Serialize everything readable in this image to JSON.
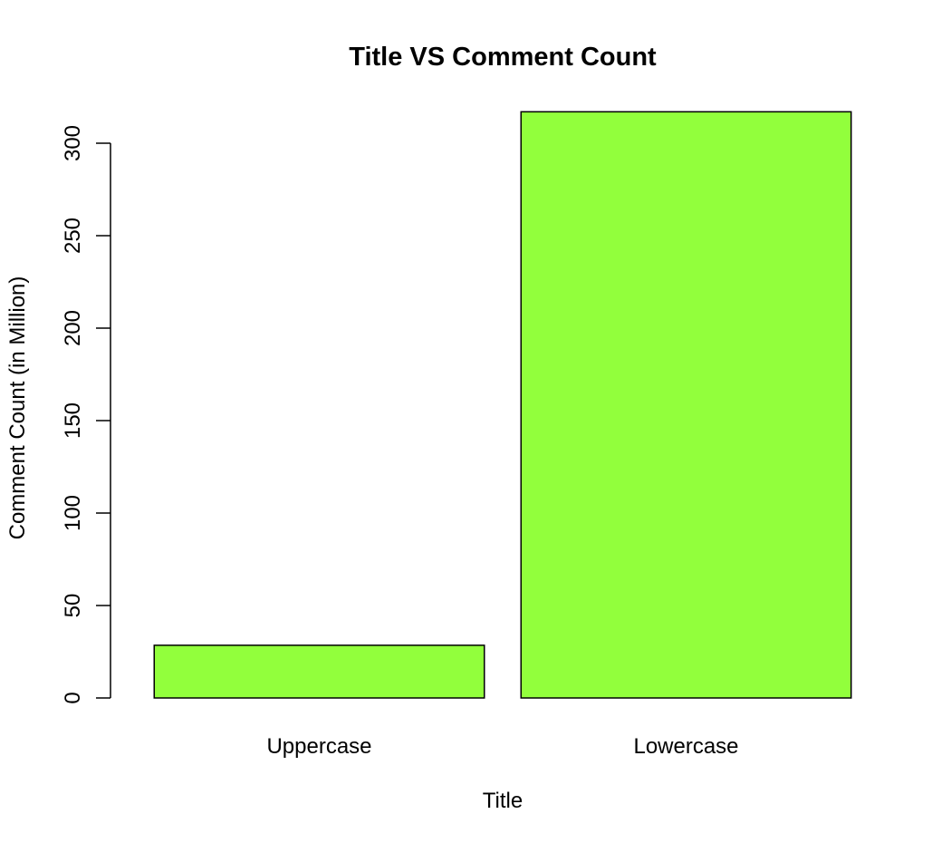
{
  "chart_data": {
    "type": "bar",
    "title": "Title VS Comment Count",
    "xlabel": "Title",
    "ylabel": "Comment Count (in Million)",
    "categories": [
      "Uppercase",
      "Lowercase"
    ],
    "values": [
      28.5,
      317
    ],
    "ylim": [
      0,
      300
    ],
    "yticks": [
      0,
      50,
      100,
      150,
      200,
      250,
      300
    ],
    "grid": false,
    "bar_color": "#92FF3C",
    "bar_border_color": "#000000"
  }
}
